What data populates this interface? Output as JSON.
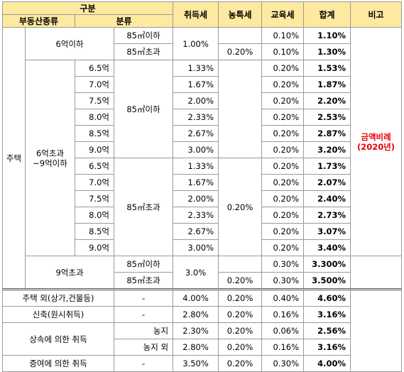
{
  "header": {
    "gubun": "구분",
    "property_type": "부동산종류",
    "classification": "분류",
    "acquisition_tax": "취득세",
    "rural_tax": "농특세",
    "education_tax": "교육세",
    "total": "합계",
    "remarks": "비고"
  },
  "housing": {
    "label": "주택",
    "under6": {
      "label": "6억이하",
      "small": "85㎡이하",
      "large": "85㎡초과",
      "acq": "1.00%",
      "rural_large": "0.20%",
      "edu": [
        "0.10%",
        "0.10%"
      ],
      "total": [
        "1.10%",
        "1.30%"
      ]
    },
    "mid": {
      "label_line1": "6억초과",
      "label_line2": "~9억이하",
      "small": "85㎡이하",
      "large": "85㎡초과",
      "prices": [
        "6.5억",
        "7.0억",
        "7.5억",
        "8.0억",
        "8.5억",
        "9.0억"
      ],
      "acq": [
        "1.33%",
        "1.67%",
        "2.00%",
        "2.33%",
        "2.67%",
        "3.00%"
      ],
      "rural_large": "0.20%",
      "edu": "0.20%",
      "total_small": [
        "1.53%",
        "1.87%",
        "2.20%",
        "2.53%",
        "2.87%",
        "3.20%"
      ],
      "total_large": [
        "1.73%",
        "2.07%",
        "2.40%",
        "2.73%",
        "3.07%",
        "3.40%"
      ],
      "note_line1": "금액비례",
      "note_line2": "(2020년)"
    },
    "over9": {
      "label": "9억초과",
      "small": "85㎡이하",
      "large": "85㎡초과",
      "acq": "3.0%",
      "rural_large": "0.20%",
      "edu": [
        "0.30%",
        "0.30%"
      ],
      "total": [
        "3.300%",
        "3.500%"
      ]
    }
  },
  "others": [
    {
      "label": "주택 외(상가,건물등)",
      "class": "-",
      "acq": "4.00%",
      "rural": "0.20%",
      "edu": "0.40%",
      "total": "4.60%"
    },
    {
      "label": "신축(원시취득)",
      "class": "-",
      "acq": "2.80%",
      "rural": "0.20%",
      "edu": "0.16%",
      "total": "3.16%"
    }
  ],
  "inheritance": {
    "label": "상속에 의한 취득",
    "rows": [
      {
        "class": "농지",
        "acq": "2.30%",
        "rural": "0.20%",
        "edu": "0.06%",
        "total": "2.56%"
      },
      {
        "class": "농지 외",
        "acq": "2.80%",
        "rural": "0.20%",
        "edu": "0.16%",
        "total": "3.16%"
      }
    ]
  },
  "gift": {
    "label": "증여에 의한 취득",
    "class": "-",
    "acq": "3.50%",
    "rural": "0.20%",
    "edu": "0.30%",
    "total": "4.00%"
  }
}
